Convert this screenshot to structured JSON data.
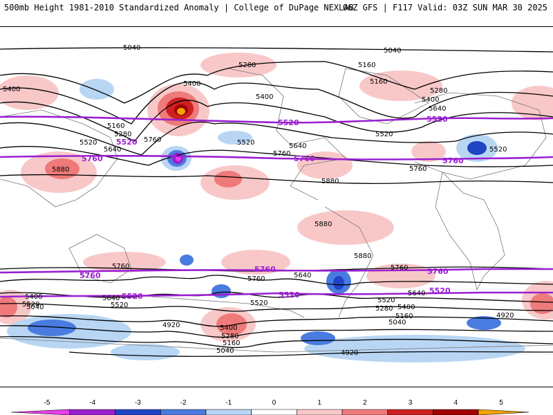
{
  "header": {
    "left": "500mb Height 1981-2010 Standardized Anomaly | College of DuPage NEXLAB",
    "right": "06Z GFS | F117 Valid: 03Z SUN MAR 30 2025"
  },
  "contour_labels": {
    "h5040": "5040",
    "h4920": "4920",
    "h5160": "5160",
    "h5280": "5280",
    "h5400": "5400",
    "h5520": "5520",
    "h5640": "5640",
    "h5760": "5760",
    "h5880": "5880"
  },
  "colorbar": {
    "ticks": [
      "-5",
      "-4",
      "-3",
      "-2",
      "-1",
      "0",
      "1",
      "2",
      "3",
      "4",
      "5"
    ],
    "colors": [
      "#e83ee8",
      "#9b20d0",
      "#1f44c4",
      "#4a7be0",
      "#b8d6f4",
      "#ffffff",
      "#f8c8c8",
      "#ee7a7a",
      "#cc2020",
      "#a00000",
      "#f5a400"
    ]
  }
}
